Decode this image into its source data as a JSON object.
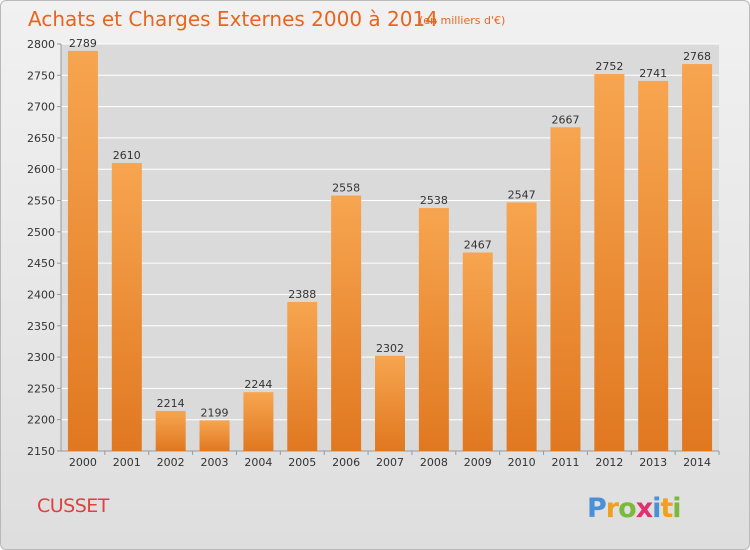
{
  "header": {
    "title": "Achats et Charges Externes 2000 à 2014",
    "subtitle": "(en milliers d'€)"
  },
  "footer": {
    "city": "CUSSET",
    "logo_text": "Proxiti"
  },
  "colors": {
    "title": "#e8651e",
    "bar_light": "#f7a550",
    "bar_dark": "#e07820",
    "plot_background": "#dadada",
    "city": "#e04040"
  },
  "chart_data": {
    "type": "bar",
    "title": "Achats et Charges Externes 2000 à 2014",
    "subtitle": "(en milliers d'€)",
    "categories": [
      "2000",
      "2001",
      "2002",
      "2003",
      "2004",
      "2005",
      "2006",
      "2007",
      "2008",
      "2009",
      "2010",
      "2011",
      "2012",
      "2013",
      "2014"
    ],
    "values": [
      2789,
      2610,
      2214,
      2199,
      2244,
      2388,
      2558,
      2302,
      2538,
      2467,
      2547,
      2667,
      2752,
      2741,
      2768
    ],
    "ylim": [
      2150,
      2800
    ],
    "yticks": [
      2150,
      2200,
      2250,
      2300,
      2350,
      2400,
      2450,
      2500,
      2550,
      2600,
      2650,
      2700,
      2750,
      2800
    ],
    "grid": true,
    "legend": "none"
  }
}
